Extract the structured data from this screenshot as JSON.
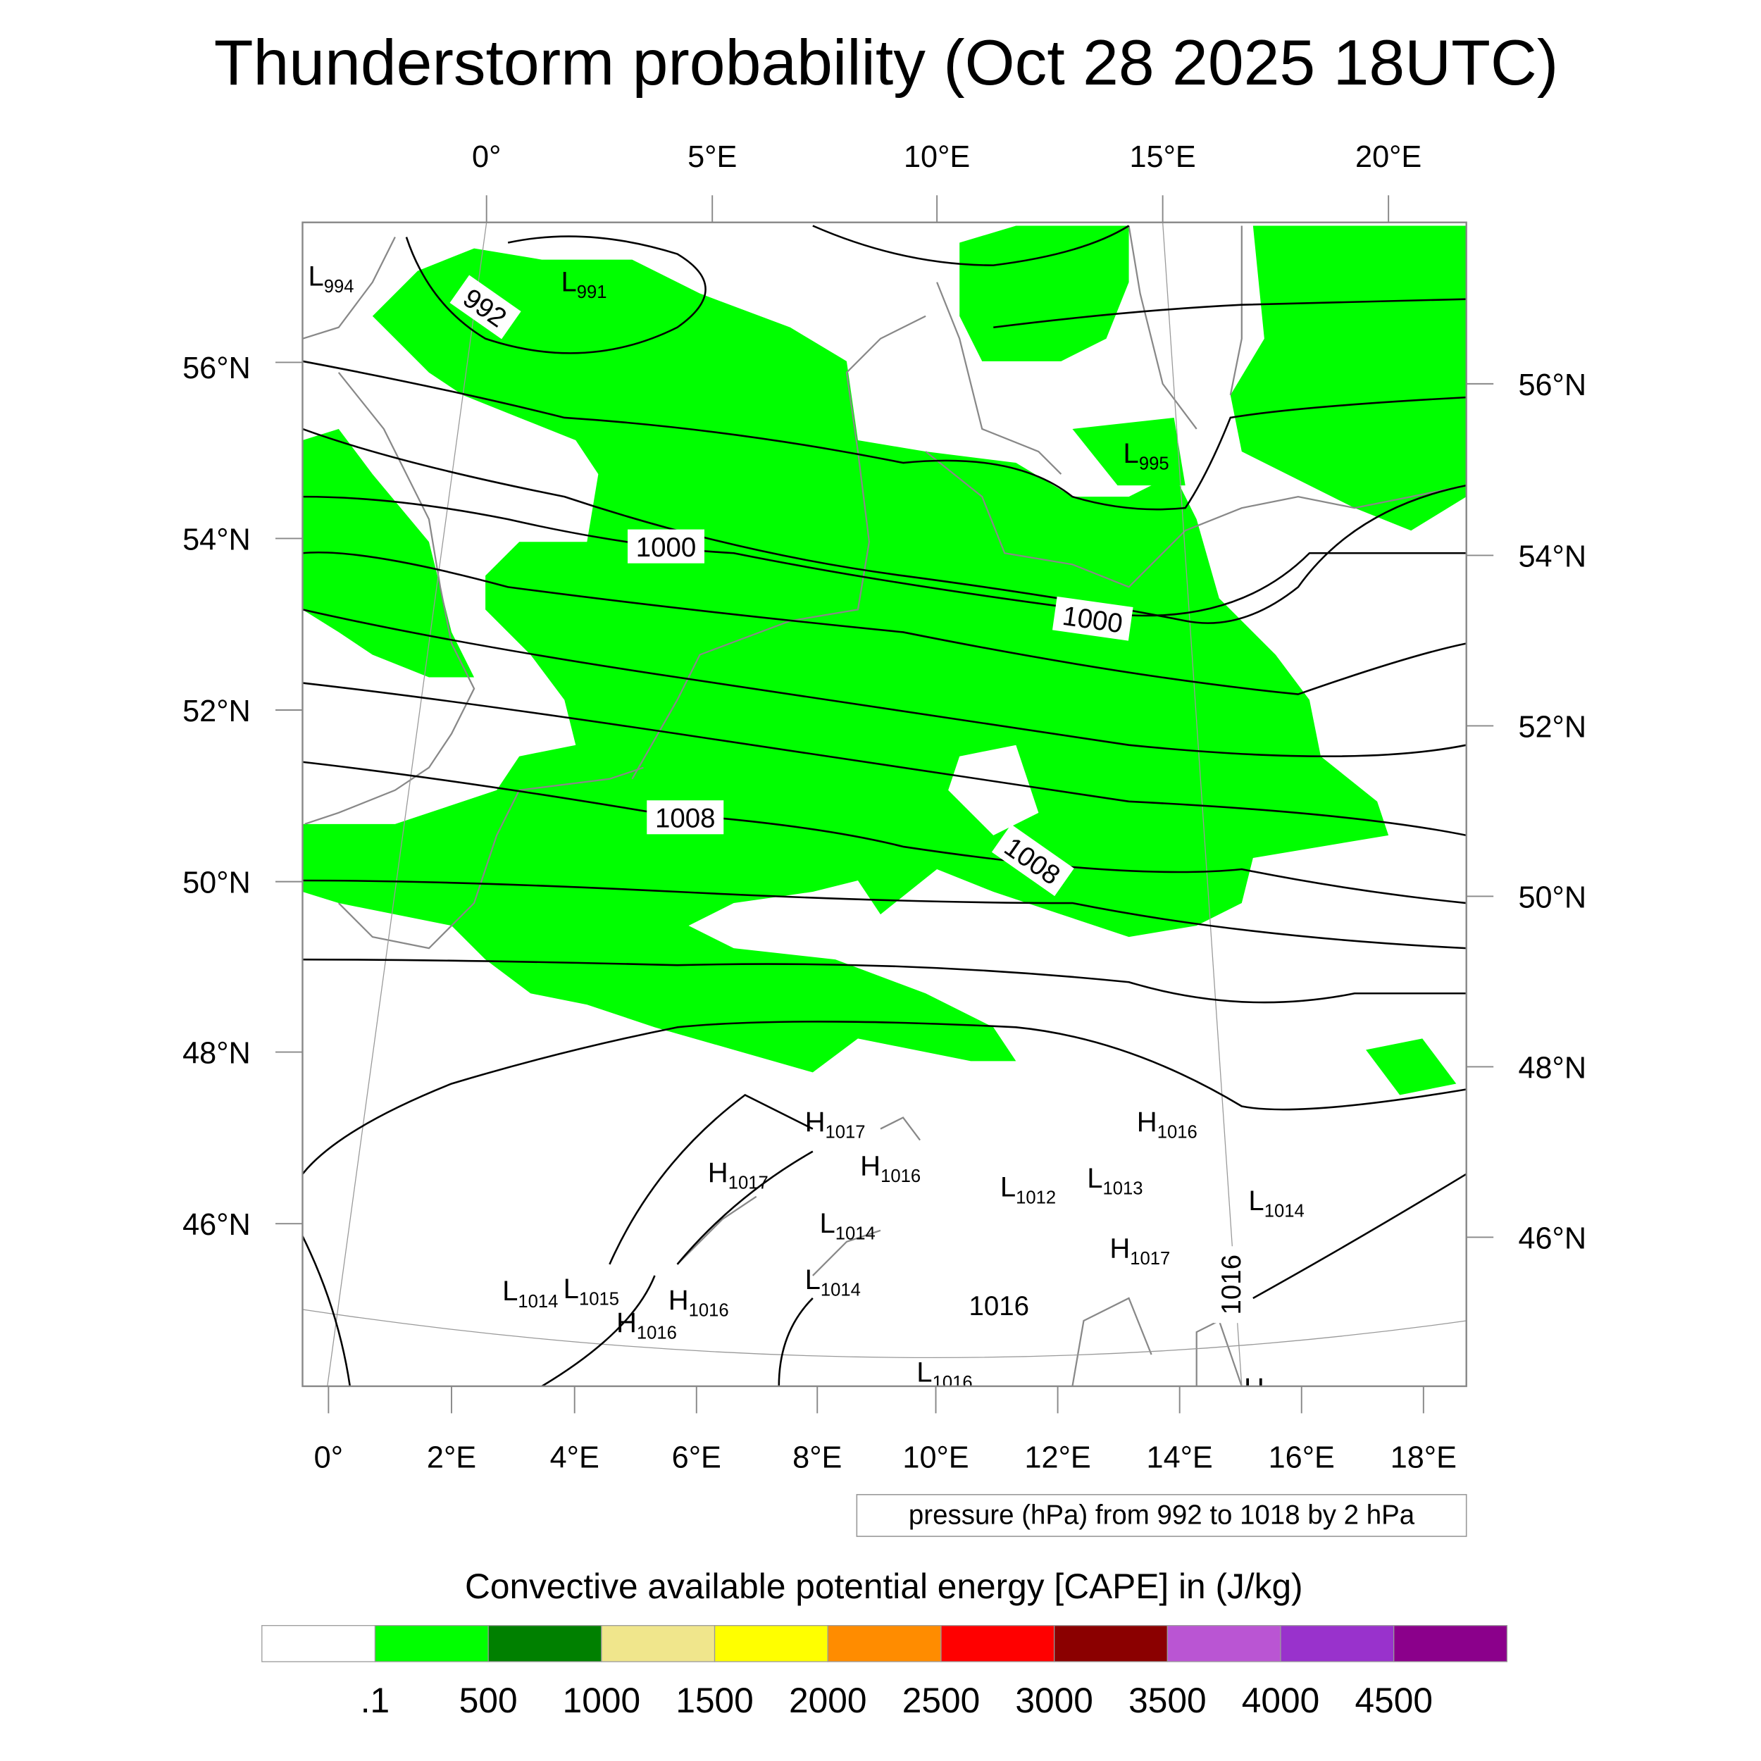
{
  "title": "Thunderstorm probability (Oct 28 2025 18UTC)",
  "top_axis_labels": [
    "0°",
    "5°E",
    "10°E",
    "15°E",
    "20°E"
  ],
  "left_axis_labels": [
    "56°N",
    "54°N",
    "52°N",
    "50°N",
    "48°N",
    "46°N"
  ],
  "right_axis_labels": [
    "56°N",
    "54°N",
    "52°N",
    "50°N",
    "48°N",
    "46°N"
  ],
  "bottom_axis_labels": [
    "0°",
    "2°E",
    "4°E",
    "6°E",
    "8°E",
    "10°E",
    "12°E",
    "14°E",
    "16°E",
    "18°E"
  ],
  "contour_labels": [
    "992",
    "1000",
    "1000",
    "1008",
    "1008",
    "1016",
    "1016"
  ],
  "pressure_centers": [
    {
      "type": "L",
      "value": "994"
    },
    {
      "type": "L",
      "value": "991"
    },
    {
      "type": "L",
      "value": "995"
    },
    {
      "type": "H",
      "value": "1017"
    },
    {
      "type": "H",
      "value": "1016"
    },
    {
      "type": "H",
      "value": "1017"
    },
    {
      "type": "H",
      "value": "1016"
    },
    {
      "type": "L",
      "value": "1012"
    },
    {
      "type": "L",
      "value": "1013"
    },
    {
      "type": "L",
      "value": "1014"
    },
    {
      "type": "L",
      "value": "1014"
    },
    {
      "type": "H",
      "value": "1017"
    },
    {
      "type": "L",
      "value": "1014"
    },
    {
      "type": "L",
      "value": "1015"
    },
    {
      "type": "H",
      "value": "1016"
    },
    {
      "type": "L",
      "value": "1014"
    },
    {
      "type": "H",
      "value": "1016"
    },
    {
      "type": "L",
      "value": "1016"
    },
    {
      "type": "H",
      "value": ""
    }
  ],
  "contour_info": "pressure (hPa) from 992 to 1018 by 2 hPa",
  "colorbar": {
    "title": "Convective available potential energy [CAPE] in (J/kg)",
    "colors": [
      "#ffffff",
      "#00ff00",
      "#008000",
      "#f0e68c",
      "#ffff00",
      "#ff8c00",
      "#ff0000",
      "#8b0000",
      "#ba55d3",
      "#9932cc",
      "#8b008b"
    ],
    "labels": [
      ".1",
      "500",
      "1000",
      "1500",
      "2000",
      "2500",
      "3000",
      "3500",
      "4000",
      "4500"
    ]
  },
  "colors": {
    "cape_fill": "#00ff00",
    "isobar": "#000000",
    "coastline": "#888888"
  }
}
